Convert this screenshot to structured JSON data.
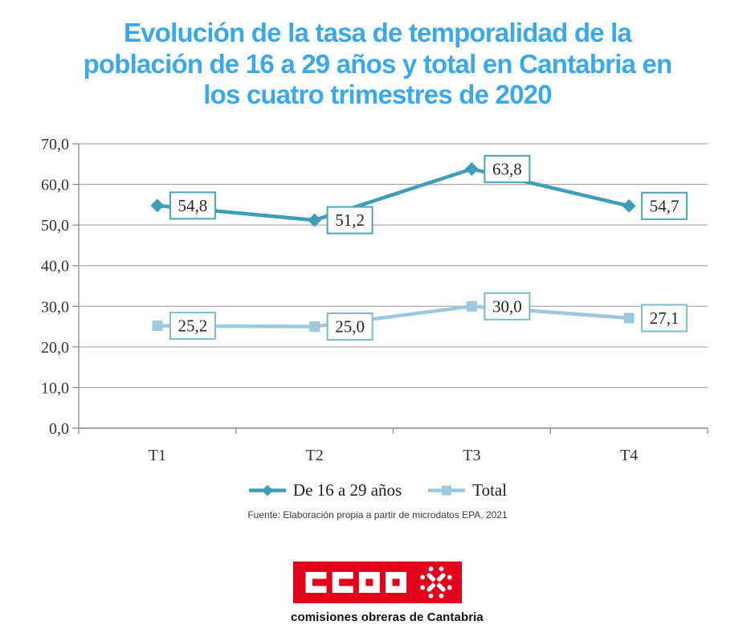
{
  "title": {
    "lines": [
      "Evolución de la tasa de temporalidad de la",
      "población de 16 a 29 años y total en Cantabria en",
      "los cuatro trimestres de 2020"
    ],
    "color": "#3BA8EA"
  },
  "chart_data": {
    "type": "line",
    "categories": [
      "T1",
      "T2",
      "T3",
      "T4"
    ],
    "series": [
      {
        "name": "De 16 a 29 años",
        "values": [
          54.8,
          51.2,
          63.8,
          54.7
        ],
        "point_labels": [
          "54,8",
          "51,2",
          "63,8",
          "54,7"
        ],
        "color": "#3E9EB8",
        "label_border": "#4BA3BC",
        "marker": "diamond"
      },
      {
        "name": "Total",
        "values": [
          25.2,
          25.0,
          30.0,
          27.1
        ],
        "point_labels": [
          "25,2",
          "25,0",
          "30,0",
          "27,1"
        ],
        "color": "#9CC9DC",
        "label_border": "#7FB8D0",
        "marker": "square"
      }
    ],
    "ylim": [
      0,
      70
    ],
    "ytick_step": 10,
    "ytick_labels": [
      "0,0",
      "10,0",
      "20,0",
      "30,0",
      "40,0",
      "50,0",
      "60,0",
      "70,0"
    ],
    "grid": true,
    "legend_position": "bottom",
    "xlabel": "",
    "ylabel": ""
  },
  "source_note": "Fuente: Elaboración propia a partir de microdatos EPA, 2021",
  "footer_logo": {
    "acronym": "CCOO",
    "tagline": "comisiones obreras de Cantabria",
    "brand_color": "#E2001A"
  },
  "colors": {
    "gridline": "#ABABAB",
    "axis": "#8C8C8C"
  }
}
